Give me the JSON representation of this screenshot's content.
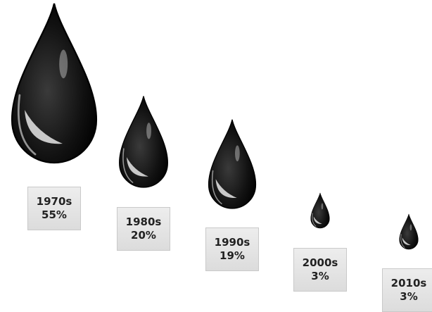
{
  "chart_data": {
    "type": "bar",
    "title": "",
    "xlabel": "",
    "ylabel": "",
    "categories": [
      "1970s",
      "1980s",
      "1990s",
      "2000s",
      "2010s"
    ],
    "values": [
      55,
      20,
      19,
      3,
      3
    ],
    "value_labels": [
      "55%",
      "20%",
      "19%",
      "3%",
      "3%"
    ],
    "unit": "%",
    "mark": "oil-drop",
    "colors": {
      "drop": "#111111",
      "box_fill": "#e6e6e6",
      "box_border": "#c9c9c9",
      "text": "#222222"
    }
  }
}
